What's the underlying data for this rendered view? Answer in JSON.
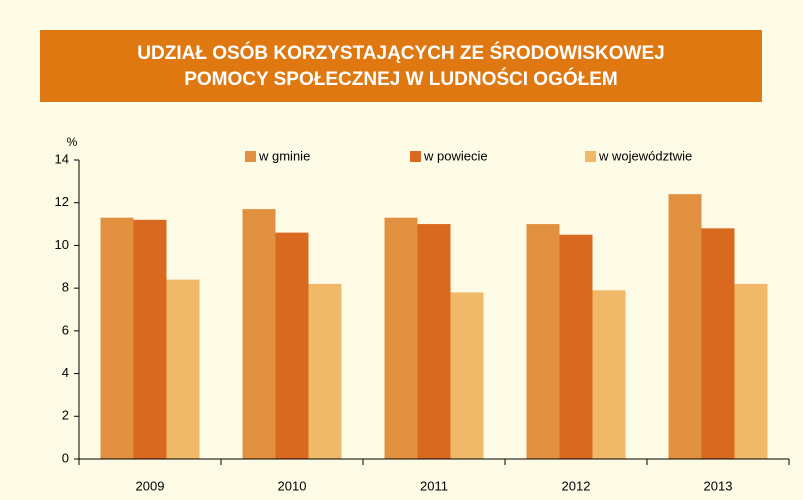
{
  "chart_data": {
    "type": "bar",
    "title": [
      "UDZIAŁ OSÓB KORZYSTAJĄCYCH ZE ŚRODOWISKOWEJ",
      "POMOCY SPOŁECZNEJ W LUDNOŚCI OGÓŁEM"
    ],
    "y_label": "%",
    "categories": [
      "2009",
      "2010",
      "2011",
      "2012",
      "2013"
    ],
    "series": [
      {
        "name": "w gminie",
        "color": "#e0903f",
        "values": [
          11.3,
          11.7,
          11.3,
          11.0,
          12.4
        ]
      },
      {
        "name": "w powiecie",
        "color": "#d8691f",
        "values": [
          11.2,
          10.6,
          11.0,
          10.5,
          10.8
        ]
      },
      {
        "name": "w województwie",
        "color": "#f0b96a",
        "values": [
          8.4,
          8.2,
          7.8,
          7.9,
          8.2
        ]
      }
    ],
    "ylim": [
      0,
      14
    ],
    "yticks": [
      0,
      2,
      4,
      6,
      8,
      10,
      12,
      14
    ],
    "legend": "top",
    "grid": false
  }
}
